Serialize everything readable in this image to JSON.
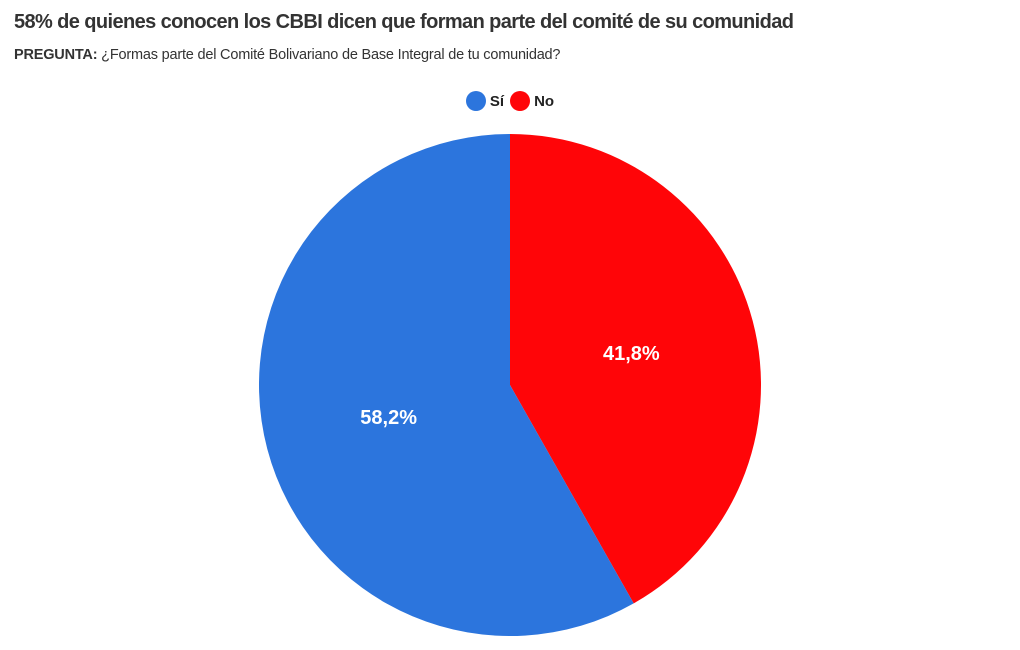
{
  "title": "58% de quienes conocen los CBBI dicen que forman parte del comité de su comunidad",
  "subtitle_prefix": "PREGUNTA:",
  "subtitle": "¿Formas parte del Comité Bolivariano de Base Integral de tu comunidad?",
  "chart_data": {
    "type": "pie",
    "title": "58% de quienes conocen los CBBI dicen que forman parte del comité de su comunidad",
    "legend_position": "top-center",
    "slices": [
      {
        "name": "No",
        "value": 41.8,
        "label": "41,8%",
        "color": "#FF0508"
      },
      {
        "name": "Sí",
        "value": 58.2,
        "label": "58,2%",
        "color": "#2C75DD"
      }
    ]
  }
}
